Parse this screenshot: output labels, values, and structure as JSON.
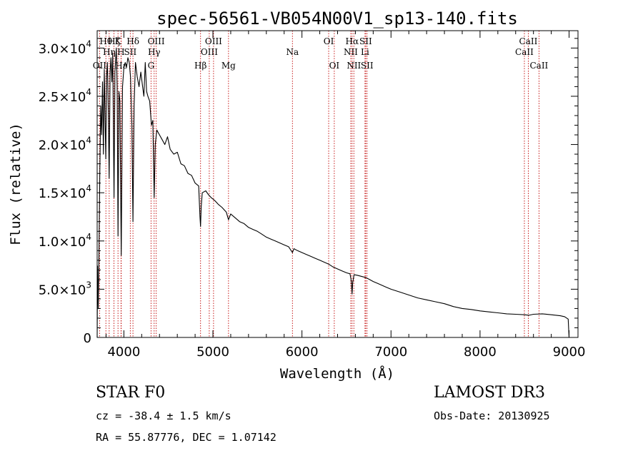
{
  "chart_data": {
    "type": "line",
    "title": "spec-56561-VB054N00V1_sp13-140.fits",
    "xlabel": "Wavelength (Å)",
    "ylabel": "Flux (relative)",
    "xlim": [
      3700,
      9100
    ],
    "ylim": [
      0,
      31800
    ],
    "xticks": [
      {
        "value": 4000,
        "label": "4000"
      },
      {
        "value": 5000,
        "label": "5000"
      },
      {
        "value": 6000,
        "label": "6000"
      },
      {
        "value": 7000,
        "label": "7000"
      },
      {
        "value": 8000,
        "label": "8000"
      },
      {
        "value": 9000,
        "label": "9000"
      }
    ],
    "yticks": [
      {
        "value": 0,
        "mant": "0",
        "exp": ""
      },
      {
        "value": 5000,
        "mant": "5.0×10",
        "exp": "3"
      },
      {
        "value": 10000,
        "mant": "1.0×10",
        "exp": "4"
      },
      {
        "value": 15000,
        "mant": "1.5×10",
        "exp": "4"
      },
      {
        "value": 20000,
        "mant": "2.0×10",
        "exp": "4"
      },
      {
        "value": 25000,
        "mant": "2.5×10",
        "exp": "4"
      },
      {
        "value": 30000,
        "mant": "3.0×10",
        "exp": "4"
      }
    ],
    "lines": [
      {
        "label": "OII",
        "wave": 3727,
        "row": 3
      },
      {
        "label": "Hθ",
        "wave": 3798,
        "row": 1
      },
      {
        "label": "Hη",
        "wave": 3835,
        "row": 2
      },
      {
        "label": "Hζ",
        "wave": 3889,
        "row": 1
      },
      {
        "label": "K",
        "wave": 3934,
        "row": 1
      },
      {
        "label": "H",
        "wave": 3968,
        "row": 2
      },
      {
        "label": "Hε",
        "wave": 3970,
        "row": 3
      },
      {
        "label": "SII",
        "wave": 4072,
        "row": 2
      },
      {
        "label": "Hδ",
        "wave": 4102,
        "row": 1
      },
      {
        "label": "G",
        "wave": 4305,
        "row": 3
      },
      {
        "label": "Hγ",
        "wave": 4340,
        "row": 2
      },
      {
        "label": "OIII",
        "wave": 4363,
        "row": 1
      },
      {
        "label": "Hβ",
        "wave": 4861,
        "row": 3
      },
      {
        "label": "OIII",
        "wave": 4959,
        "row": 2
      },
      {
        "label": "OIII",
        "wave": 5007,
        "row": 1
      },
      {
        "label": "Mg",
        "wave": 5175,
        "row": 3
      },
      {
        "label": "Na",
        "wave": 5893,
        "row": 2
      },
      {
        "label": "OI",
        "wave": 6300,
        "row": 1
      },
      {
        "label": "OI",
        "wave": 6363,
        "row": 3
      },
      {
        "label": "NII",
        "wave": 6548,
        "row": 2
      },
      {
        "label": "Hα",
        "wave": 6563,
        "row": 1
      },
      {
        "label": "NII",
        "wave": 6583,
        "row": 3
      },
      {
        "label": "SII",
        "wave": 6716,
        "row": 1
      },
      {
        "label": "Li",
        "wave": 6708,
        "row": 2
      },
      {
        "label": "SII",
        "wave": 6731,
        "row": 3
      },
      {
        "label": "CaII",
        "wave": 8498,
        "row": 2
      },
      {
        "label": "CaII",
        "wave": 8542,
        "row": 1
      },
      {
        "label": "CaII",
        "wave": 8662,
        "row": 3
      }
    ],
    "series": [
      {
        "name": "flux",
        "points": [
          [
            3700,
            0
          ],
          [
            3705,
            7400
          ],
          [
            3712,
            3000
          ],
          [
            3720,
            8500
          ],
          [
            3730,
            17000
          ],
          [
            3740,
            24000
          ],
          [
            3750,
            21000
          ],
          [
            3760,
            26500
          ],
          [
            3770,
            19000
          ],
          [
            3780,
            27800
          ],
          [
            3790,
            22000
          ],
          [
            3797,
            18500
          ],
          [
            3805,
            27000
          ],
          [
            3815,
            28500
          ],
          [
            3825,
            23500
          ],
          [
            3835,
            16500
          ],
          [
            3845,
            27500
          ],
          [
            3855,
            29000
          ],
          [
            3865,
            26500
          ],
          [
            3875,
            29500
          ],
          [
            3889,
            14500
          ],
          [
            3900,
            27500
          ],
          [
            3915,
            30000
          ],
          [
            3925,
            26000
          ],
          [
            3934,
            10500
          ],
          [
            3945,
            25500
          ],
          [
            3955,
            24500
          ],
          [
            3970,
            8500
          ],
          [
            3985,
            26000
          ],
          [
            4000,
            28000
          ],
          [
            4015,
            28500
          ],
          [
            4030,
            28000
          ],
          [
            4045,
            29000
          ],
          [
            4060,
            28500
          ],
          [
            4075,
            27000
          ],
          [
            4090,
            22000
          ],
          [
            4102,
            12000
          ],
          [
            4115,
            24000
          ],
          [
            4130,
            28500
          ],
          [
            4150,
            27000
          ],
          [
            4170,
            26000
          ],
          [
            4190,
            27500
          ],
          [
            4210,
            26000
          ],
          [
            4225,
            25000
          ],
          [
            4240,
            28500
          ],
          [
            4255,
            25500
          ],
          [
            4270,
            25000
          ],
          [
            4290,
            24500
          ],
          [
            4310,
            22000
          ],
          [
            4325,
            22500
          ],
          [
            4340,
            14500
          ],
          [
            4352,
            20000
          ],
          [
            4370,
            21500
          ],
          [
            4400,
            21000
          ],
          [
            4430,
            20500
          ],
          [
            4460,
            20000
          ],
          [
            4490,
            20800
          ],
          [
            4520,
            19500
          ],
          [
            4560,
            19000
          ],
          [
            4600,
            19200
          ],
          [
            4640,
            18000
          ],
          [
            4680,
            17800
          ],
          [
            4720,
            17000
          ],
          [
            4760,
            16800
          ],
          [
            4800,
            16000
          ],
          [
            4840,
            15700
          ],
          [
            4855,
            12500
          ],
          [
            4861,
            11500
          ],
          [
            4868,
            13500
          ],
          [
            4880,
            15000
          ],
          [
            4920,
            15200
          ],
          [
            4950,
            14800
          ],
          [
            4980,
            14500
          ],
          [
            5020,
            14200
          ],
          [
            5060,
            13800
          ],
          [
            5100,
            13500
          ],
          [
            5150,
            13000
          ],
          [
            5175,
            12200
          ],
          [
            5200,
            12800
          ],
          [
            5250,
            12400
          ],
          [
            5300,
            12000
          ],
          [
            5350,
            11800
          ],
          [
            5400,
            11400
          ],
          [
            5450,
            11200
          ],
          [
            5500,
            11000
          ],
          [
            5550,
            10700
          ],
          [
            5600,
            10400
          ],
          [
            5650,
            10200
          ],
          [
            5700,
            10000
          ],
          [
            5750,
            9800
          ],
          [
            5800,
            9600
          ],
          [
            5850,
            9400
          ],
          [
            5893,
            8800
          ],
          [
            5910,
            9200
          ],
          [
            5950,
            9000
          ],
          [
            6000,
            8800
          ],
          [
            6050,
            8600
          ],
          [
            6100,
            8400
          ],
          [
            6150,
            8200
          ],
          [
            6200,
            8000
          ],
          [
            6250,
            7800
          ],
          [
            6300,
            7600
          ],
          [
            6350,
            7300
          ],
          [
            6400,
            7100
          ],
          [
            6450,
            6900
          ],
          [
            6500,
            6700
          ],
          [
            6540,
            6600
          ],
          [
            6555,
            5800
          ],
          [
            6563,
            4500
          ],
          [
            6570,
            5700
          ],
          [
            6585,
            6500
          ],
          [
            6620,
            6450
          ],
          [
            6680,
            6300
          ],
          [
            6720,
            6200
          ],
          [
            6760,
            6000
          ],
          [
            6800,
            5800
          ],
          [
            6850,
            5600
          ],
          [
            6900,
            5400
          ],
          [
            6950,
            5200
          ],
          [
            7000,
            5000
          ],
          [
            7100,
            4700
          ],
          [
            7200,
            4400
          ],
          [
            7300,
            4100
          ],
          [
            7400,
            3900
          ],
          [
            7500,
            3700
          ],
          [
            7600,
            3500
          ],
          [
            7700,
            3200
          ],
          [
            7800,
            3000
          ],
          [
            7900,
            2900
          ],
          [
            8000,
            2750
          ],
          [
            8100,
            2650
          ],
          [
            8200,
            2550
          ],
          [
            8300,
            2450
          ],
          [
            8400,
            2400
          ],
          [
            8500,
            2350
          ],
          [
            8550,
            2300
          ],
          [
            8600,
            2400
          ],
          [
            8700,
            2450
          ],
          [
            8800,
            2350
          ],
          [
            8900,
            2250
          ],
          [
            8950,
            2150
          ],
          [
            8990,
            1900
          ],
          [
            9000,
            0
          ]
        ]
      }
    ]
  },
  "info": {
    "object": "STAR    F0",
    "survey": "LAMOST DR3",
    "cz": "cz = -38.4 ± 1.5 km/s",
    "obs_date": "Obs-Date: 20130925",
    "radec": "RA =  55.87776, DEC =   1.07142"
  }
}
